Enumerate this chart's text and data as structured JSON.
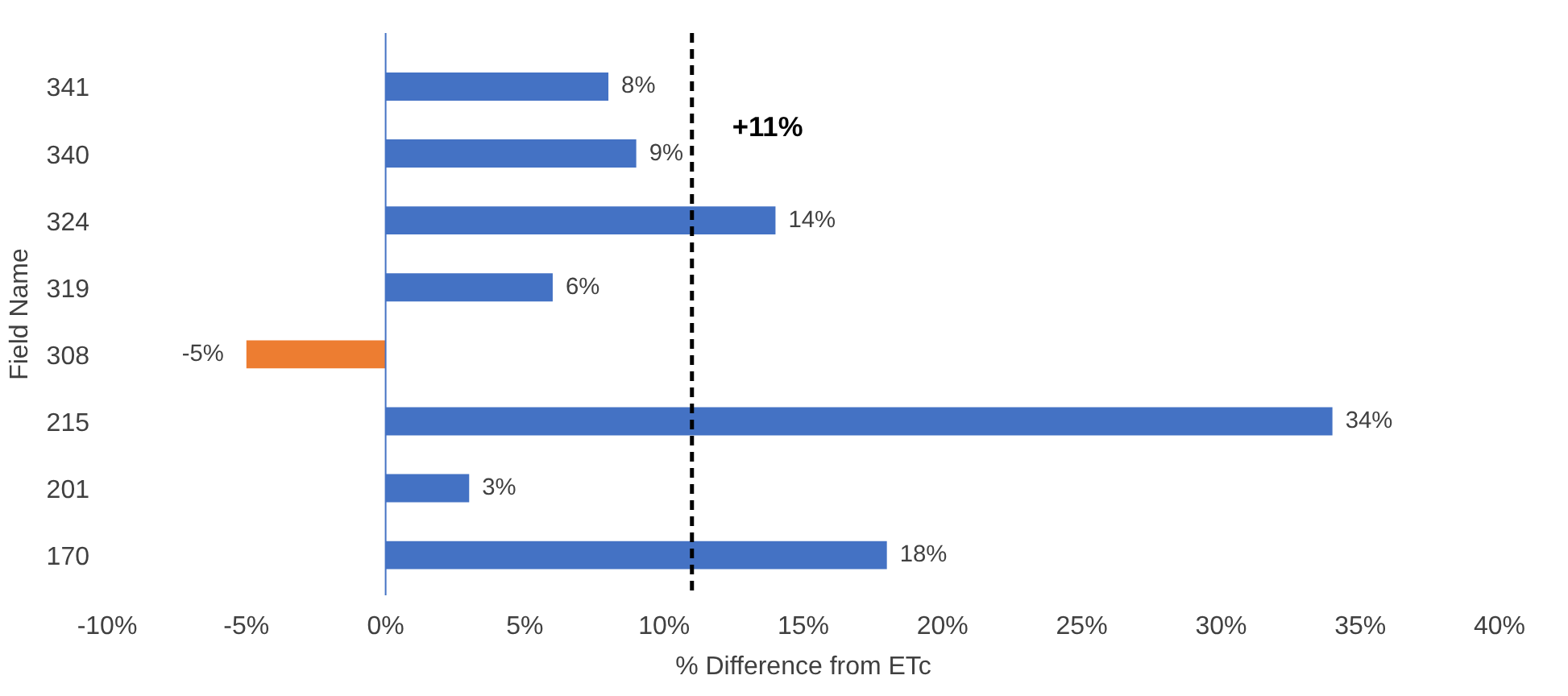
{
  "chart_data": {
    "type": "bar",
    "orientation": "horizontal",
    "categories": [
      "341",
      "340",
      "324",
      "319",
      "308",
      "215",
      "201",
      "170"
    ],
    "values": [
      8,
      9,
      14,
      6,
      -5,
      34,
      3,
      18
    ],
    "colors": [
      "#4472c4",
      "#4472c4",
      "#4472c4",
      "#4472c4",
      "#ed7d31",
      "#4472c4",
      "#4472c4",
      "#4472c4"
    ],
    "value_labels": [
      "8%",
      "9%",
      "14%",
      "6%",
      "-5%",
      "34%",
      "3%",
      "18%"
    ],
    "xlim": [
      -10,
      40
    ],
    "xticks": [
      {
        "value": -10,
        "label": "-10%"
      },
      {
        "value": -5,
        "label": "-5%"
      },
      {
        "value": 0,
        "label": "0%"
      },
      {
        "value": 5,
        "label": "5%"
      },
      {
        "value": 10,
        "label": "10%"
      },
      {
        "value": 15,
        "label": "15%"
      },
      {
        "value": 20,
        "label": "20%"
      },
      {
        "value": 25,
        "label": "25%"
      },
      {
        "value": 30,
        "label": "30%"
      },
      {
        "value": 35,
        "label": "35%"
      },
      {
        "value": 40,
        "label": "40%"
      }
    ],
    "xlabel": "% Difference from ETc",
    "ylabel": "Field Name",
    "ref_lines": [
      {
        "axis": "x",
        "value": 0,
        "color": "#4472c4",
        "line_style": "solid"
      },
      {
        "axis": "x",
        "value": 11,
        "label": "+11%",
        "color": "#000000",
        "line_style": "dashed"
      }
    ],
    "grid": false
  }
}
